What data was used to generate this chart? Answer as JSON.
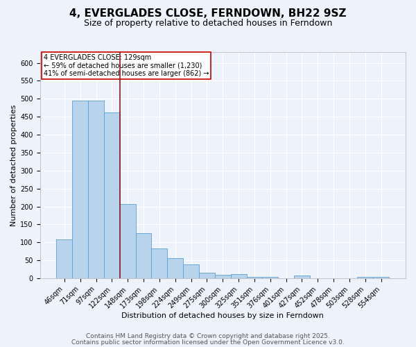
{
  "title": "4, EVERGLADES CLOSE, FERNDOWN, BH22 9SZ",
  "subtitle": "Size of property relative to detached houses in Ferndown",
  "xlabel": "Distribution of detached houses by size in Ferndown",
  "ylabel": "Number of detached properties",
  "categories": [
    "46sqm",
    "71sqm",
    "97sqm",
    "122sqm",
    "148sqm",
    "173sqm",
    "198sqm",
    "224sqm",
    "249sqm",
    "275sqm",
    "300sqm",
    "325sqm",
    "351sqm",
    "376sqm",
    "401sqm",
    "427sqm",
    "452sqm",
    "478sqm",
    "503sqm",
    "528sqm",
    "554sqm"
  ],
  "values": [
    108,
    495,
    495,
    462,
    207,
    125,
    84,
    57,
    38,
    15,
    10,
    12,
    4,
    4,
    0,
    7,
    0,
    0,
    0,
    5,
    5
  ],
  "bar_color": "#b8d4ec",
  "bar_edge_color": "#5a9fd4",
  "ylim": [
    0,
    630
  ],
  "yticks": [
    0,
    50,
    100,
    150,
    200,
    250,
    300,
    350,
    400,
    450,
    500,
    550,
    600
  ],
  "vline_x": 3.5,
  "vline_color": "#8b1a1a",
  "annotation_text": "4 EVERGLADES CLOSE: 129sqm\n← 59% of detached houses are smaller (1,230)\n41% of semi-detached houses are larger (862) →",
  "annotation_box_color": "#ffffff",
  "annotation_box_edge": "#cc0000",
  "footer1": "Contains HM Land Registry data © Crown copyright and database right 2025.",
  "footer2": "Contains public sector information licensed under the Open Government Licence v3.0.",
  "bg_color": "#eef2fb",
  "plot_bg_color": "#eef2fb",
  "grid_color": "#ffffff",
  "title_fontsize": 11,
  "subtitle_fontsize": 9,
  "axis_label_fontsize": 8,
  "tick_fontsize": 7,
  "annotation_fontsize": 7,
  "footer_fontsize": 6.5
}
